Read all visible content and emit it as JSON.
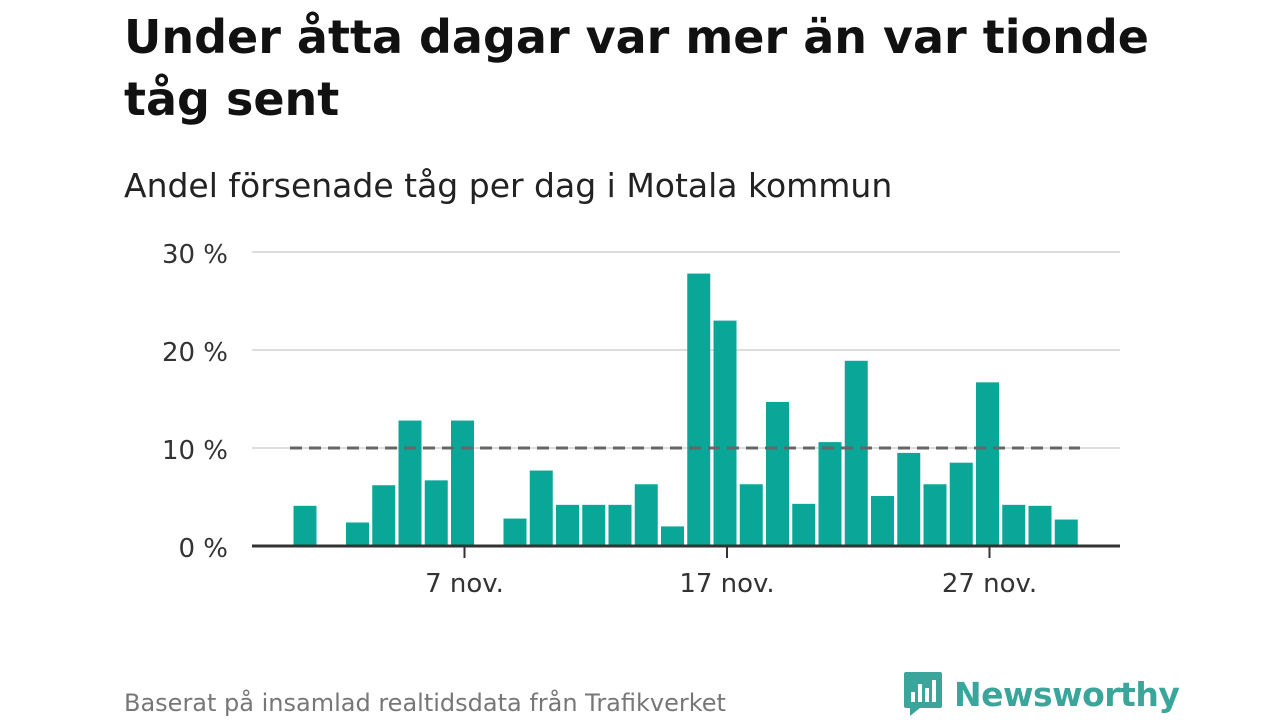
{
  "header": {
    "title": "Under åtta dagar var mer än var tionde tåg sent",
    "subtitle": "Andel försenade tåg per dag i Motala kommun"
  },
  "footer": {
    "source": "Baserat på insamlad realtidsdata från Trafikverket",
    "brand": "Newsworthy",
    "brand_icon": "newsworthy-chart-bubble-icon"
  },
  "colors": {
    "bar": "#0aa698",
    "reference_line": "#666666",
    "grid": "#dddddd",
    "axis": "#333333",
    "brand": "#3aa69b"
  },
  "chart_data": {
    "type": "bar",
    "title": "",
    "xlabel": "",
    "ylabel": "",
    "ylim": [
      0,
      30
    ],
    "yticks": [
      0,
      10,
      20,
      30
    ],
    "ytick_labels": [
      "0 %",
      "10 %",
      "20 %",
      "30 %"
    ],
    "xtick_labels": [
      {
        "index": 6,
        "label": "7 nov."
      },
      {
        "index": 16,
        "label": "17 nov."
      },
      {
        "index": 26,
        "label": "27 nov."
      }
    ],
    "grid": true,
    "reference_line": 10,
    "series": [
      {
        "values": [
          4.1,
          null,
          2.4,
          6.2,
          12.8,
          6.7,
          12.8,
          null,
          2.8,
          7.7,
          4.2,
          4.2,
          4.2,
          6.3,
          2.0,
          27.8,
          23.0,
          6.3,
          14.7,
          4.3,
          10.6,
          18.9,
          5.1,
          9.5,
          6.3,
          8.5,
          16.7,
          4.2,
          4.1,
          2.7
        ]
      }
    ]
  }
}
